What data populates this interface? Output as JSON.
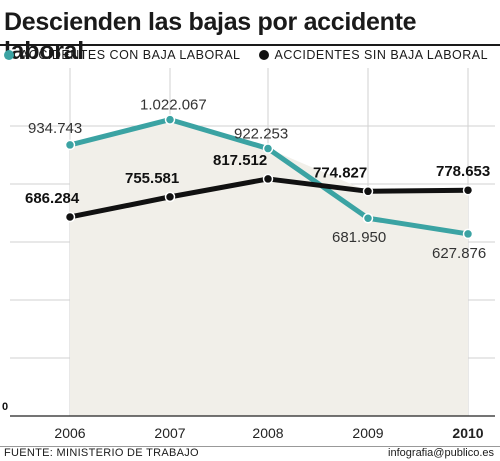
{
  "title": "Descienden las bajas por accidente laboral",
  "source": "FUENTE: MINISTERIO DE TRABAJO",
  "credit": "infografia@publico.es",
  "colors": {
    "con_baja": "#3ba3a3",
    "sin_baja": "#111111",
    "area": "#f1efe9",
    "grid": "#d2d2d2"
  },
  "chart_data": {
    "type": "line",
    "categories": [
      "2006",
      "2007",
      "2008",
      "2009",
      "2010"
    ],
    "series": [
      {
        "name": "ACCIDENTES CON BAJA LABORAL",
        "values": [
          934743,
          1022067,
          922253,
          681950,
          627876
        ],
        "labels": [
          "934.743",
          "1.022.067",
          "922.253",
          "681.950",
          "627.876"
        ]
      },
      {
        "name": "ACCIDENTES SIN BAJA LABORAL",
        "values": [
          686284,
          755581,
          817512,
          774827,
          778653
        ],
        "labels": [
          "686.284",
          "755.581",
          "817.512",
          "774.827",
          "778.653"
        ]
      }
    ],
    "y_min_label": "0",
    "ylim": [
      0,
      1200000
    ],
    "grid": true,
    "legend": "top",
    "highlight_category": "2010"
  }
}
